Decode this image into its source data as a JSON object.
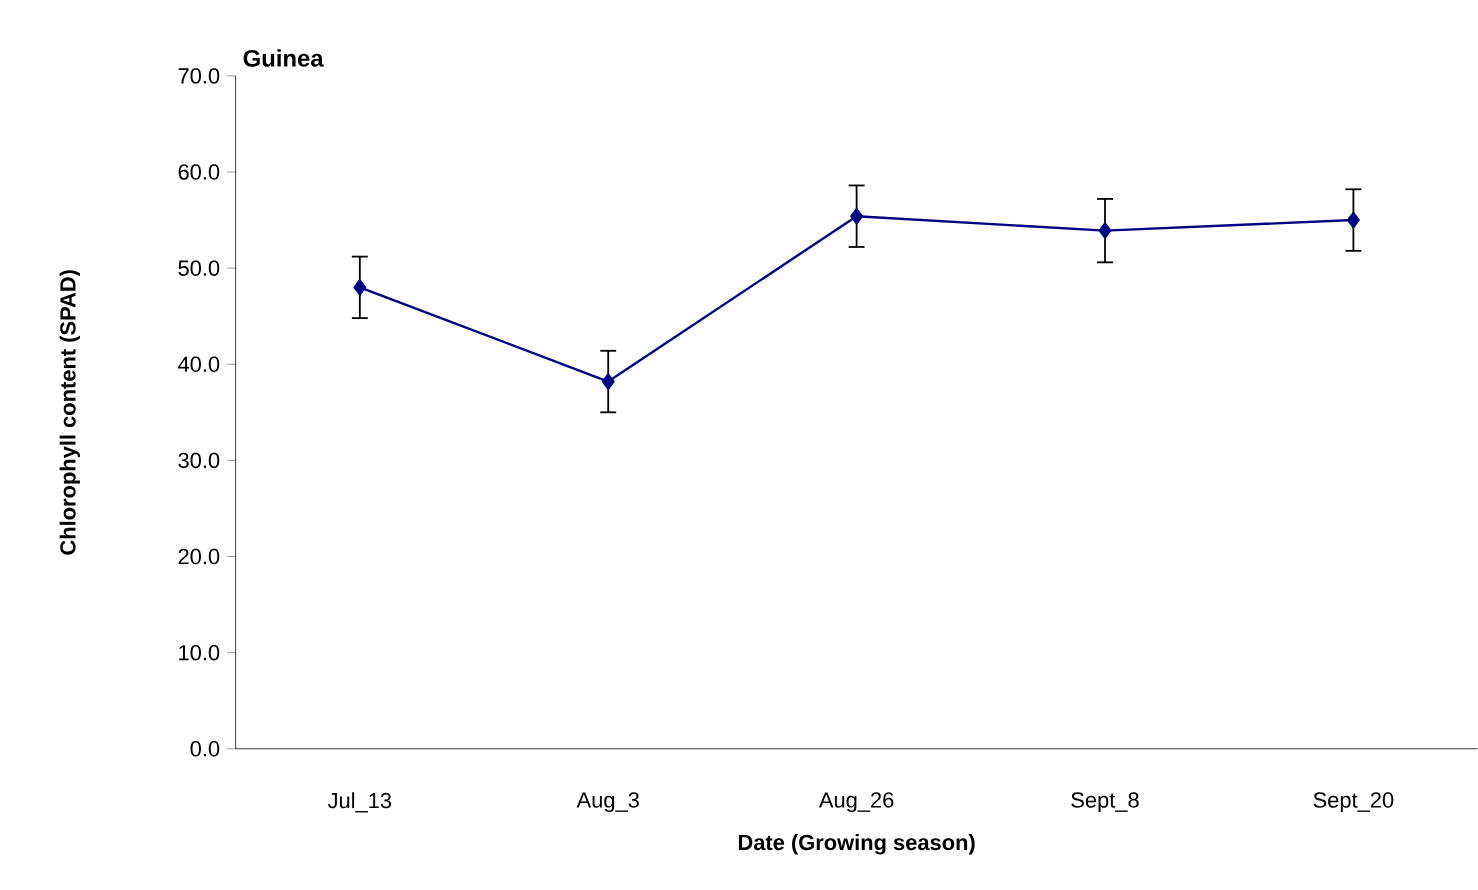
{
  "chart_data": {
    "type": "line",
    "title": "Guinea",
    "xlabel": "Date (Growing season)",
    "ylabel": "Chlorophyll content (SPAD)",
    "categories": [
      "Jul_13",
      "Aug_3",
      "Aug_26",
      "Sept_8",
      "Sept_20"
    ],
    "series": [
      {
        "color": "#000080",
        "values": [
          48.0,
          38.2,
          55.4,
          53.9,
          55.0
        ],
        "errors": [
          3.2,
          3.2,
          3.2,
          3.3,
          3.2
        ]
      }
    ],
    "ylim": [
      0,
      70
    ],
    "yticks": [
      {
        "value": 0,
        "label": "0.0"
      },
      {
        "value": 10,
        "label": "10.0"
      },
      {
        "value": 20,
        "label": "20.0"
      },
      {
        "value": 30,
        "label": "30.0"
      },
      {
        "value": 40,
        "label": "40.0"
      },
      {
        "value": 50,
        "label": "50.0"
      },
      {
        "value": 60,
        "label": "60.0"
      },
      {
        "value": 70,
        "label": "70.0"
      }
    ],
    "marker": "diamond",
    "line_style": "solid",
    "grid": false
  }
}
